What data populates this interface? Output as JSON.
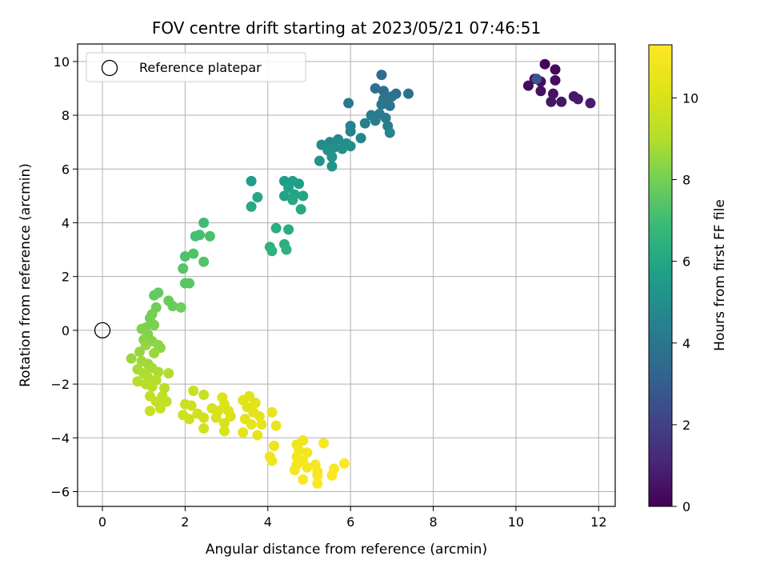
{
  "chart_data": {
    "type": "scatter",
    "title": "FOV centre drift starting at 2023/05/21 07:46:51",
    "xlabel": "Angular distance from reference (arcmin)",
    "ylabel": "Rotation from reference (arcmin)",
    "xlim": [
      -0.6,
      12.4
    ],
    "ylim": [
      -6.55,
      10.65
    ],
    "xticks": [
      "0",
      "2",
      "4",
      "6",
      "8",
      "10",
      "12"
    ],
    "yticks": [
      "−6",
      "−4",
      "−2",
      "0",
      "2",
      "4",
      "6",
      "8",
      "10"
    ],
    "grid": true,
    "legend": {
      "placement": "top-left",
      "entries": [
        "Reference platepar"
      ]
    },
    "reference_point": {
      "x": 0,
      "y": 0,
      "label": "Reference platepar"
    },
    "colorbar": {
      "label": "Hours from first FF file",
      "colormap": "viridis",
      "range": [
        0,
        11.3
      ],
      "ticks": [
        "0",
        "2",
        "4",
        "6",
        "8",
        "10"
      ]
    },
    "points": [
      {
        "x": 10.7,
        "y": 9.9,
        "c": 0.1
      },
      {
        "x": 10.95,
        "y": 9.7,
        "c": 0.2
      },
      {
        "x": 10.45,
        "y": 9.35,
        "c": 0.3
      },
      {
        "x": 10.3,
        "y": 9.1,
        "c": 0.3
      },
      {
        "x": 10.6,
        "y": 9.25,
        "c": 0.4
      },
      {
        "x": 10.95,
        "y": 9.3,
        "c": 0.4
      },
      {
        "x": 10.6,
        "y": 8.9,
        "c": 0.5
      },
      {
        "x": 10.9,
        "y": 8.8,
        "c": 0.5
      },
      {
        "x": 10.85,
        "y": 8.5,
        "c": 0.6
      },
      {
        "x": 11.1,
        "y": 8.5,
        "c": 0.6
      },
      {
        "x": 11.4,
        "y": 8.7,
        "c": 0.7
      },
      {
        "x": 11.5,
        "y": 8.6,
        "c": 0.7
      },
      {
        "x": 11.8,
        "y": 8.45,
        "c": 0.8
      },
      {
        "x": 10.5,
        "y": 9.35,
        "c": 2.7
      },
      {
        "x": 6.75,
        "y": 9.5,
        "c": 3.6
      },
      {
        "x": 6.6,
        "y": 9.0,
        "c": 3.7
      },
      {
        "x": 6.8,
        "y": 8.9,
        "c": 3.7
      },
      {
        "x": 7.1,
        "y": 8.8,
        "c": 3.8
      },
      {
        "x": 7.4,
        "y": 8.8,
        "c": 3.8
      },
      {
        "x": 7.0,
        "y": 8.7,
        "c": 3.9
      },
      {
        "x": 6.8,
        "y": 8.6,
        "c": 3.9
      },
      {
        "x": 6.75,
        "y": 8.4,
        "c": 4.0
      },
      {
        "x": 6.95,
        "y": 8.35,
        "c": 4.0
      },
      {
        "x": 5.95,
        "y": 8.45,
        "c": 4.1
      },
      {
        "x": 6.7,
        "y": 8.05,
        "c": 4.2
      },
      {
        "x": 6.5,
        "y": 8.0,
        "c": 4.2
      },
      {
        "x": 6.85,
        "y": 7.9,
        "c": 4.3
      },
      {
        "x": 6.6,
        "y": 7.8,
        "c": 4.3
      },
      {
        "x": 6.35,
        "y": 7.7,
        "c": 4.4
      },
      {
        "x": 6.9,
        "y": 7.6,
        "c": 4.4
      },
      {
        "x": 6.0,
        "y": 7.6,
        "c": 4.5
      },
      {
        "x": 6.0,
        "y": 7.4,
        "c": 4.5
      },
      {
        "x": 6.95,
        "y": 7.35,
        "c": 4.6
      },
      {
        "x": 6.25,
        "y": 7.15,
        "c": 4.7
      },
      {
        "x": 5.7,
        "y": 7.1,
        "c": 4.8
      },
      {
        "x": 5.5,
        "y": 7.0,
        "c": 4.8
      },
      {
        "x": 5.9,
        "y": 6.95,
        "c": 4.9
      },
      {
        "x": 5.3,
        "y": 6.9,
        "c": 4.9
      },
      {
        "x": 5.6,
        "y": 6.8,
        "c": 5.0
      },
      {
        "x": 6.0,
        "y": 6.85,
        "c": 5.0
      },
      {
        "x": 5.8,
        "y": 6.75,
        "c": 5.1
      },
      {
        "x": 5.45,
        "y": 6.7,
        "c": 5.1
      },
      {
        "x": 5.55,
        "y": 6.45,
        "c": 5.2
      },
      {
        "x": 5.25,
        "y": 6.3,
        "c": 5.2
      },
      {
        "x": 5.55,
        "y": 6.1,
        "c": 5.3
      },
      {
        "x": 3.6,
        "y": 5.55,
        "c": 5.6
      },
      {
        "x": 4.4,
        "y": 5.55,
        "c": 5.6
      },
      {
        "x": 4.6,
        "y": 5.55,
        "c": 5.7
      },
      {
        "x": 4.75,
        "y": 5.45,
        "c": 5.7
      },
      {
        "x": 4.5,
        "y": 5.3,
        "c": 5.8
      },
      {
        "x": 4.4,
        "y": 5.0,
        "c": 5.8
      },
      {
        "x": 4.65,
        "y": 5.05,
        "c": 5.9
      },
      {
        "x": 4.85,
        "y": 5.0,
        "c": 5.9
      },
      {
        "x": 3.75,
        "y": 4.95,
        "c": 6.0
      },
      {
        "x": 4.6,
        "y": 4.85,
        "c": 6.0
      },
      {
        "x": 3.6,
        "y": 4.6,
        "c": 6.1
      },
      {
        "x": 4.8,
        "y": 4.5,
        "c": 6.1
      },
      {
        "x": 4.2,
        "y": 3.8,
        "c": 6.3
      },
      {
        "x": 4.5,
        "y": 3.75,
        "c": 6.3
      },
      {
        "x": 4.05,
        "y": 3.1,
        "c": 6.4
      },
      {
        "x": 4.4,
        "y": 3.2,
        "c": 6.4
      },
      {
        "x": 4.1,
        "y": 2.95,
        "c": 6.5
      },
      {
        "x": 4.45,
        "y": 3.0,
        "c": 6.5
      },
      {
        "x": 2.45,
        "y": 4.0,
        "c": 7.0
      },
      {
        "x": 2.25,
        "y": 3.5,
        "c": 7.1
      },
      {
        "x": 2.35,
        "y": 3.55,
        "c": 7.1
      },
      {
        "x": 2.6,
        "y": 3.5,
        "c": 7.2
      },
      {
        "x": 2.0,
        "y": 2.75,
        "c": 7.3
      },
      {
        "x": 2.2,
        "y": 2.85,
        "c": 7.3
      },
      {
        "x": 2.45,
        "y": 2.55,
        "c": 7.4
      },
      {
        "x": 1.95,
        "y": 2.3,
        "c": 7.4
      },
      {
        "x": 2.0,
        "y": 1.75,
        "c": 7.5
      },
      {
        "x": 2.1,
        "y": 1.75,
        "c": 7.5
      },
      {
        "x": 1.35,
        "y": 1.4,
        "c": 7.7
      },
      {
        "x": 1.25,
        "y": 1.3,
        "c": 7.7
      },
      {
        "x": 1.6,
        "y": 1.1,
        "c": 7.8
      },
      {
        "x": 1.7,
        "y": 0.9,
        "c": 7.8
      },
      {
        "x": 1.9,
        "y": 0.85,
        "c": 7.9
      },
      {
        "x": 1.3,
        "y": 0.85,
        "c": 7.9
      },
      {
        "x": 1.2,
        "y": 0.6,
        "c": 8.0
      },
      {
        "x": 1.15,
        "y": 0.45,
        "c": 8.0
      },
      {
        "x": 1.25,
        "y": 0.2,
        "c": 8.1
      },
      {
        "x": 1.05,
        "y": 0.1,
        "c": 8.1
      },
      {
        "x": 0.95,
        "y": 0.05,
        "c": 8.2
      },
      {
        "x": 1.1,
        "y": -0.15,
        "c": 8.2
      },
      {
        "x": 1.0,
        "y": -0.35,
        "c": 8.3
      },
      {
        "x": 1.2,
        "y": -0.4,
        "c": 8.3
      },
      {
        "x": 1.35,
        "y": -0.55,
        "c": 8.4
      },
      {
        "x": 1.4,
        "y": -0.65,
        "c": 8.4
      },
      {
        "x": 1.05,
        "y": -0.55,
        "c": 8.5
      },
      {
        "x": 0.9,
        "y": -0.8,
        "c": 8.5
      },
      {
        "x": 1.25,
        "y": -0.85,
        "c": 8.6
      },
      {
        "x": 0.7,
        "y": -1.05,
        "c": 8.6
      },
      {
        "x": 0.95,
        "y": -1.15,
        "c": 8.7
      },
      {
        "x": 1.1,
        "y": -1.25,
        "c": 8.7
      },
      {
        "x": 0.85,
        "y": -1.45,
        "c": 8.8
      },
      {
        "x": 1.2,
        "y": -1.4,
        "c": 8.8
      },
      {
        "x": 1.0,
        "y": -1.6,
        "c": 8.9
      },
      {
        "x": 1.35,
        "y": -1.55,
        "c": 8.9
      },
      {
        "x": 1.6,
        "y": -1.6,
        "c": 9.0
      },
      {
        "x": 1.1,
        "y": -1.75,
        "c": 9.0
      },
      {
        "x": 1.3,
        "y": -1.85,
        "c": 9.1
      },
      {
        "x": 0.85,
        "y": -1.9,
        "c": 9.1
      },
      {
        "x": 1.05,
        "y": -2.0,
        "c": 9.1
      },
      {
        "x": 1.5,
        "y": -2.15,
        "c": 9.2
      },
      {
        "x": 1.2,
        "y": -2.1,
        "c": 9.2
      },
      {
        "x": 1.45,
        "y": -2.45,
        "c": 9.3
      },
      {
        "x": 1.15,
        "y": -2.45,
        "c": 9.3
      },
      {
        "x": 1.55,
        "y": -2.65,
        "c": 9.4
      },
      {
        "x": 1.3,
        "y": -2.65,
        "c": 9.4
      },
      {
        "x": 1.4,
        "y": -2.9,
        "c": 9.5
      },
      {
        "x": 1.15,
        "y": -3.0,
        "c": 9.5
      },
      {
        "x": 2.0,
        "y": -2.75,
        "c": 9.6
      },
      {
        "x": 2.2,
        "y": -2.25,
        "c": 9.6
      },
      {
        "x": 2.45,
        "y": -2.4,
        "c": 9.6
      },
      {
        "x": 2.15,
        "y": -2.8,
        "c": 9.7
      },
      {
        "x": 1.95,
        "y": -3.15,
        "c": 9.7
      },
      {
        "x": 2.1,
        "y": -3.3,
        "c": 9.7
      },
      {
        "x": 2.3,
        "y": -3.1,
        "c": 9.8
      },
      {
        "x": 2.45,
        "y": -3.25,
        "c": 9.8
      },
      {
        "x": 2.45,
        "y": -3.65,
        "c": 9.8
      },
      {
        "x": 2.65,
        "y": -2.9,
        "c": 9.9
      },
      {
        "x": 2.8,
        "y": -3.0,
        "c": 9.9
      },
      {
        "x": 2.75,
        "y": -3.25,
        "c": 9.9
      },
      {
        "x": 2.95,
        "y": -3.45,
        "c": 10.0
      },
      {
        "x": 2.95,
        "y": -3.75,
        "c": 10.0
      },
      {
        "x": 3.1,
        "y": -3.2,
        "c": 10.0
      },
      {
        "x": 2.9,
        "y": -2.5,
        "c": 10.1
      },
      {
        "x": 2.95,
        "y": -2.75,
        "c": 10.1
      },
      {
        "x": 3.05,
        "y": -3.0,
        "c": 10.1
      },
      {
        "x": 3.4,
        "y": -2.6,
        "c": 10.2
      },
      {
        "x": 3.5,
        "y": -2.85,
        "c": 10.2
      },
      {
        "x": 3.55,
        "y": -2.45,
        "c": 10.2
      },
      {
        "x": 3.7,
        "y": -2.7,
        "c": 10.3
      },
      {
        "x": 3.65,
        "y": -3.05,
        "c": 10.3
      },
      {
        "x": 3.45,
        "y": -3.3,
        "c": 10.3
      },
      {
        "x": 3.6,
        "y": -3.5,
        "c": 10.4
      },
      {
        "x": 3.4,
        "y": -3.8,
        "c": 10.4
      },
      {
        "x": 3.8,
        "y": -3.2,
        "c": 10.4
      },
      {
        "x": 3.85,
        "y": -3.5,
        "c": 10.5
      },
      {
        "x": 3.75,
        "y": -3.9,
        "c": 10.5
      },
      {
        "x": 4.1,
        "y": -3.05,
        "c": 10.5
      },
      {
        "x": 4.2,
        "y": -3.55,
        "c": 10.6
      },
      {
        "x": 4.15,
        "y": -4.3,
        "c": 10.7
      },
      {
        "x": 4.05,
        "y": -4.7,
        "c": 10.7
      },
      {
        "x": 4.1,
        "y": -4.85,
        "c": 10.8
      },
      {
        "x": 4.7,
        "y": -4.25,
        "c": 10.8
      },
      {
        "x": 4.85,
        "y": -4.1,
        "c": 10.8
      },
      {
        "x": 4.75,
        "y": -4.45,
        "c": 10.9
      },
      {
        "x": 4.95,
        "y": -4.55,
        "c": 10.9
      },
      {
        "x": 4.7,
        "y": -4.7,
        "c": 10.9
      },
      {
        "x": 4.85,
        "y": -4.85,
        "c": 11.0
      },
      {
        "x": 4.7,
        "y": -5.0,
        "c": 11.0
      },
      {
        "x": 4.95,
        "y": -5.1,
        "c": 11.0
      },
      {
        "x": 4.65,
        "y": -5.2,
        "c": 11.0
      },
      {
        "x": 5.15,
        "y": -5.0,
        "c": 11.1
      },
      {
        "x": 5.35,
        "y": -4.2,
        "c": 11.1
      },
      {
        "x": 5.2,
        "y": -5.25,
        "c": 11.1
      },
      {
        "x": 5.2,
        "y": -5.4,
        "c": 11.2
      },
      {
        "x": 4.85,
        "y": -5.55,
        "c": 11.2
      },
      {
        "x": 5.2,
        "y": -5.7,
        "c": 11.2
      },
      {
        "x": 5.6,
        "y": -5.15,
        "c": 11.2
      },
      {
        "x": 5.55,
        "y": -5.4,
        "c": 11.3
      },
      {
        "x": 5.85,
        "y": -4.95,
        "c": 11.3
      }
    ]
  }
}
